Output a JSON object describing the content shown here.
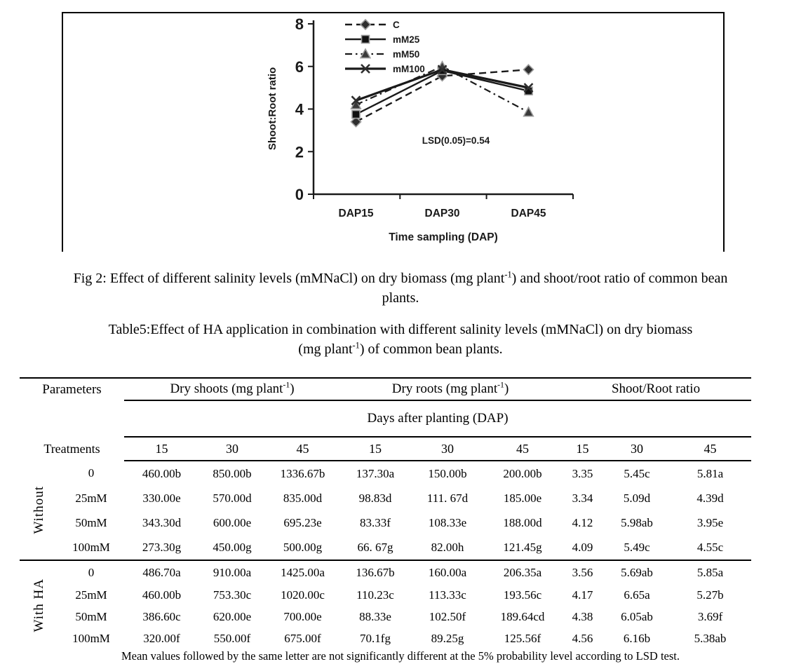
{
  "figure": {
    "chart_data": {
      "type": "line",
      "categories": [
        "DAP15",
        "DAP30",
        "DAP45"
      ],
      "series": [
        {
          "name": "C",
          "marker": "diamond",
          "dash": "dashed",
          "values": [
            3.4,
            5.55,
            5.85
          ]
        },
        {
          "name": "mM25",
          "marker": "square",
          "dash": "solid",
          "values": [
            3.75,
            5.8,
            4.85
          ]
        },
        {
          "name": "mM50",
          "marker": "triangle",
          "dash": "dashdot",
          "values": [
            4.2,
            6.0,
            3.85
          ]
        },
        {
          "name": "mM100",
          "marker": "x",
          "dash": "solid",
          "values": [
            4.4,
            5.85,
            5.0
          ]
        }
      ],
      "title": "",
      "xlabel": "Time sampling (DAP)",
      "ylabel": "Shoot:Root ratio",
      "ylim": [
        0,
        8
      ],
      "yticks": [
        0,
        2,
        4,
        6,
        8
      ],
      "annotation": "LSD(0.05)=0.54",
      "legend_position": "top-left-inside",
      "grid": false,
      "ink_color": "#1a1a1a",
      "marker_edge_color": "#9a9a9a"
    }
  },
  "fig_caption": {
    "segments": [
      {
        "text": "Fig 2: Effect of different salinity levels (mMNaCl) on dry biomass (mg plant"
      },
      {
        "text": "-1",
        "sup": true
      },
      {
        "text": ") and shoot/root ratio of common bean"
      },
      {
        "br": true
      },
      {
        "text": "plants."
      }
    ]
  },
  "table_title": {
    "segments": [
      {
        "text": "Table5:Effect of HA application in combination with different salinity levels (mMNaCl) on dry biomass"
      },
      {
        "br": true
      },
      {
        "text": "(mg plant"
      },
      {
        "text": "-1",
        "sup": true
      },
      {
        "text": ") of common bean plants."
      }
    ]
  },
  "table": {
    "header": {
      "parameters_label": "Parameters",
      "treatments_label": "Treatments",
      "dap_label": "Days after planting (DAP)",
      "col_groups": [
        {
          "segments": [
            {
              "text": "Dry shoots (mg plant"
            },
            {
              "text": "-1",
              "sup": true
            },
            {
              "text": ")"
            }
          ]
        },
        {
          "segments": [
            {
              "text": "Dry roots (mg plant"
            },
            {
              "text": "-1",
              "sup": true
            },
            {
              "text": ")"
            }
          ]
        },
        {
          "segments": [
            {
              "text": "Shoot/Root ratio"
            }
          ]
        }
      ],
      "dap_columns": [
        "15",
        "30",
        "45",
        "15",
        "30",
        "45",
        "15",
        "30",
        "45"
      ]
    },
    "groups": [
      {
        "label": "Without",
        "rows": [
          {
            "treatment": "0",
            "values": [
              "460.00b",
              "850.00b",
              "1336.67b",
              "137.30a",
              "150.00b",
              "200.00b",
              "3.35",
              "5.45c",
              "5.81a"
            ]
          },
          {
            "treatment": "25mM",
            "values": [
              "330.00e",
              "570.00d",
              "835.00d",
              "98.83d",
              "111. 67d",
              "185.00e",
              "3.34",
              "5.09d",
              "4.39d"
            ]
          },
          {
            "treatment": "50mM",
            "values": [
              "343.30d",
              "600.00e",
              "695.23e",
              "83.33f",
              "108.33e",
              "188.00d",
              "4.12",
              "5.98ab",
              "3.95e"
            ]
          },
          {
            "treatment": "100mM",
            "values": [
              "273.30g",
              "450.00g",
              "500.00g",
              "66. 67g",
              "82.00h",
              "121.45g",
              "4.09",
              "5.49c",
              "4.55c"
            ]
          }
        ]
      },
      {
        "label": "With HA",
        "rows": [
          {
            "treatment": "0",
            "values": [
              "486.70a",
              "910.00a",
              "1425.00a",
              "136.67b",
              "160.00a",
              "206.35a",
              "3.56",
              "5.69ab",
              "5.85a"
            ]
          },
          {
            "treatment": "25mM",
            "values": [
              "460.00b",
              "753.30c",
              "1020.00c",
              "110.23c",
              "113.33c",
              "193.56c",
              "4.17",
              "6.65a",
              "5.27b"
            ]
          },
          {
            "treatment": "50mM",
            "values": [
              "386.60c",
              "620.00e",
              "700.00e",
              "88.33e",
              "102.50f",
              "189.64cd",
              "4.38",
              "6.05ab",
              "3.69f"
            ]
          },
          {
            "treatment": "100mM",
            "values": [
              "320.00f",
              "550.00f",
              "675.00f",
              "70.1fg",
              "89.25g",
              "125.56f",
              "4.56",
              "6.16b",
              "5.38ab"
            ]
          }
        ]
      }
    ],
    "footnote": "Mean values followed by the same letter are not significantly different at the 5% probability level according to LSD test."
  }
}
